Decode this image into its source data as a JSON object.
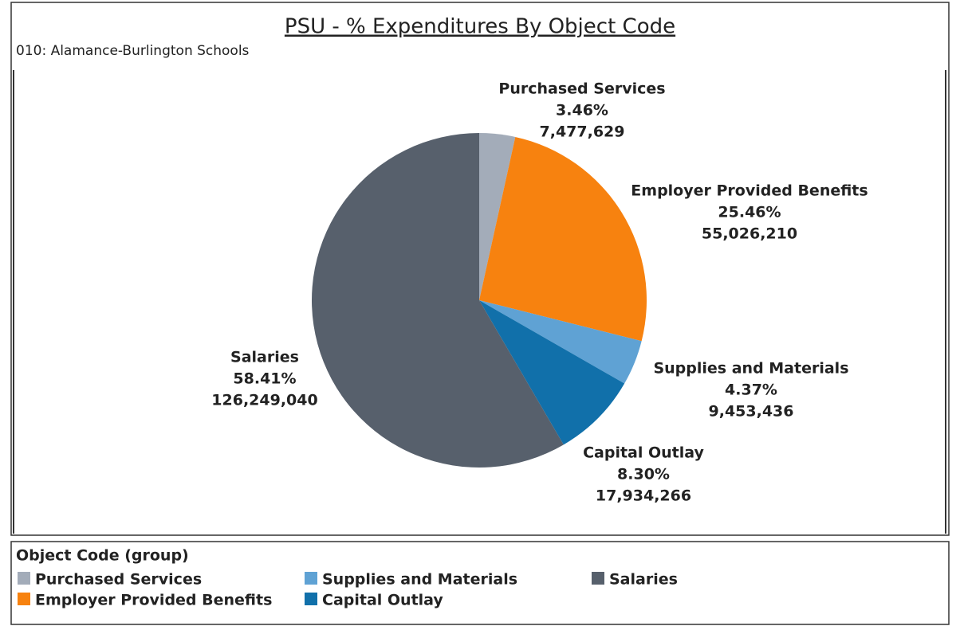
{
  "chart_data": {
    "type": "pie",
    "title": "PSU - % Expenditures By Object Code",
    "subtitle": "010: Alamance-Burlington Schools",
    "legend_title": "Object Code (group)",
    "categories": [
      "Purchased Services",
      "Employer Provided Benefits",
      "Supplies and Materials",
      "Capital Outlay",
      "Salaries"
    ],
    "values": [
      3.46,
      25.46,
      4.37,
      8.3,
      58.41
    ],
    "value_labels": [
      "3.46%",
      "25.46%",
      "4.37%",
      "8.30%",
      "58.41%"
    ],
    "amounts": [
      7477629,
      55026210,
      9453436,
      17934266,
      126249040
    ],
    "amount_labels": [
      "7,477,629",
      "55,026,210",
      "9,453,436",
      "17,934,266",
      "126,249,040"
    ],
    "colors": [
      "#a3acb9",
      "#f7820f",
      "#5fa2d4",
      "#1170aa",
      "#57606c"
    ]
  }
}
